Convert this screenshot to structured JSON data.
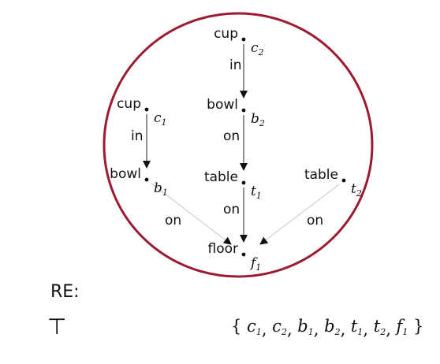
{
  "nodes": [
    {
      "id": "c2",
      "label": "cup",
      "var": "c",
      "sub": "2"
    },
    {
      "id": "b2",
      "label": "bowl",
      "var": "b",
      "sub": "2"
    },
    {
      "id": "c1",
      "label": "cup",
      "var": "c",
      "sub": "1"
    },
    {
      "id": "b1",
      "label": "bowl",
      "var": "b",
      "sub": "1"
    },
    {
      "id": "t1",
      "label": "table",
      "var": "t",
      "sub": "1"
    },
    {
      "id": "t2",
      "label": "table",
      "var": "t",
      "sub": "2"
    },
    {
      "id": "f1",
      "label": "floor",
      "var": "f",
      "sub": "1"
    }
  ],
  "edges": [
    {
      "from": "c2",
      "to": "b2",
      "label": "in"
    },
    {
      "from": "c1",
      "to": "b1",
      "label": "in"
    },
    {
      "from": "b2",
      "to": "t1",
      "label": "on"
    },
    {
      "from": "b1",
      "to": "f1",
      "label": "on"
    },
    {
      "from": "t1",
      "to": "f1",
      "label": "on"
    },
    {
      "from": "t2",
      "to": "f1",
      "label": "on"
    }
  ],
  "colors": {
    "circle": "#9b1b30",
    "edge_faint": "#cfcfcf",
    "edge_dark": "#222222"
  },
  "re_label": "RE:",
  "top_symbol": "⊤",
  "set_open": "{",
  "set_close": "}",
  "set_items": [
    {
      "var": "c",
      "sub": "1"
    },
    {
      "var": "c",
      "sub": "2"
    },
    {
      "var": "b",
      "sub": "1"
    },
    {
      "var": "b",
      "sub": "2"
    },
    {
      "var": "t",
      "sub": "1"
    },
    {
      "var": "t",
      "sub": "2"
    },
    {
      "var": "f",
      "sub": "1"
    }
  ]
}
